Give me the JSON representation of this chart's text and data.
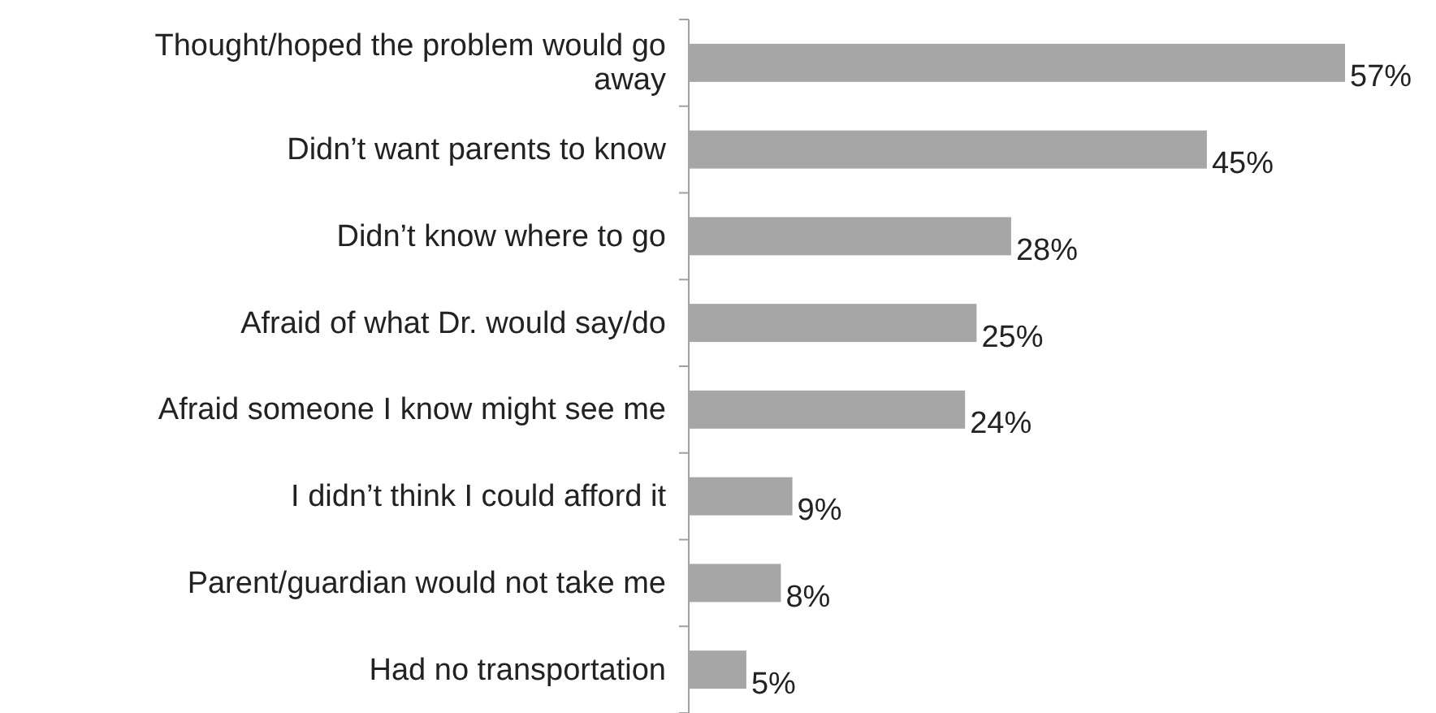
{
  "chart_data": {
    "type": "bar",
    "orientation": "horizontal",
    "categories": [
      "Thought/hoped the problem would go away",
      "Didn’t want parents to know",
      "Didn’t know where to go",
      "Afraid of what Dr. would say/do",
      "Afraid someone I know might see me",
      "I didn’t think I could afford it",
      "Parent/guardian would not take me",
      "Had no transportation"
    ],
    "values": [
      57,
      45,
      28,
      25,
      24,
      9,
      8,
      5
    ],
    "value_labels": [
      "57%",
      "45%",
      "28%",
      "25%",
      "24%",
      "9%",
      "8%",
      "5%"
    ],
    "color": "#a6a6a6"
  }
}
